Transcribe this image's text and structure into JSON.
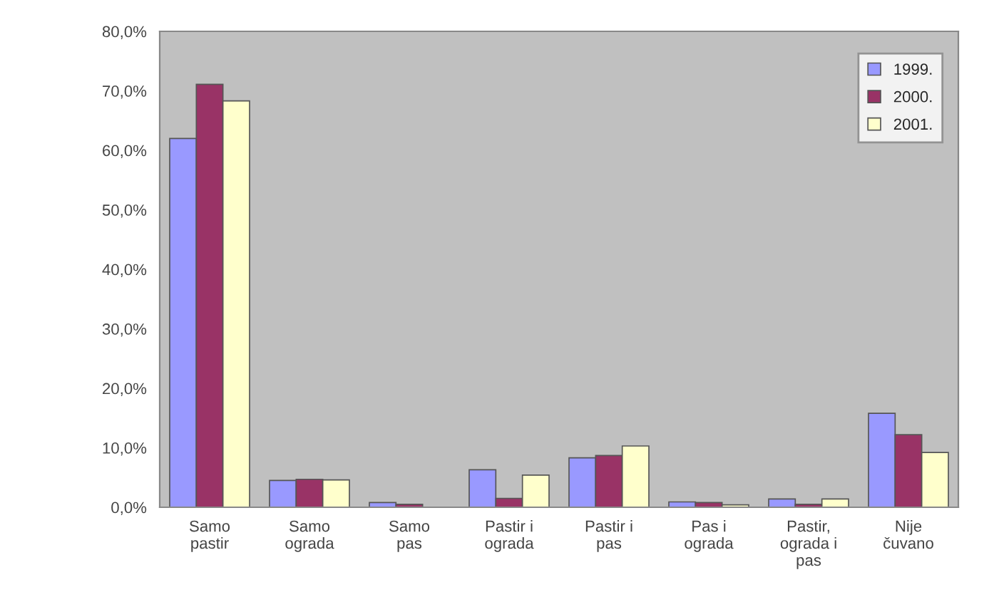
{
  "chart_data": {
    "type": "bar",
    "categories": [
      "Samo\npastir",
      "Samo\nograda",
      "Samo\npas",
      "Pastir i\nograda",
      "Pastir i\npas",
      "Pas i\nograda",
      "Pastir,\nograda i\npas",
      "Nije\nčuvano"
    ],
    "series": [
      {
        "name": "1999.",
        "color": "#9999ff",
        "values": [
          62.0,
          4.5,
          0.8,
          6.3,
          8.3,
          0.9,
          1.4,
          15.8
        ]
      },
      {
        "name": "2000.",
        "color": "#993366",
        "values": [
          71.1,
          4.7,
          0.5,
          1.5,
          8.7,
          0.8,
          0.5,
          12.2
        ]
      },
      {
        "name": "2001.",
        "color": "#ffffcc",
        "values": [
          68.3,
          4.6,
          null,
          5.4,
          10.3,
          0.4,
          1.4,
          9.2
        ]
      }
    ],
    "ylim": [
      0,
      80
    ],
    "yticks": [
      {
        "value": 0,
        "label": "0,0%"
      },
      {
        "value": 10,
        "label": "10,0%"
      },
      {
        "value": 20,
        "label": "20,0%"
      },
      {
        "value": 30,
        "label": "30,0%"
      },
      {
        "value": 40,
        "label": "40,0%"
      },
      {
        "value": 50,
        "label": "50,0%"
      },
      {
        "value": 60,
        "label": "60,0%"
      },
      {
        "value": 70,
        "label": "70,0%"
      },
      {
        "value": 80,
        "label": "80,0%"
      }
    ],
    "grid": false,
    "legend": "top right"
  }
}
